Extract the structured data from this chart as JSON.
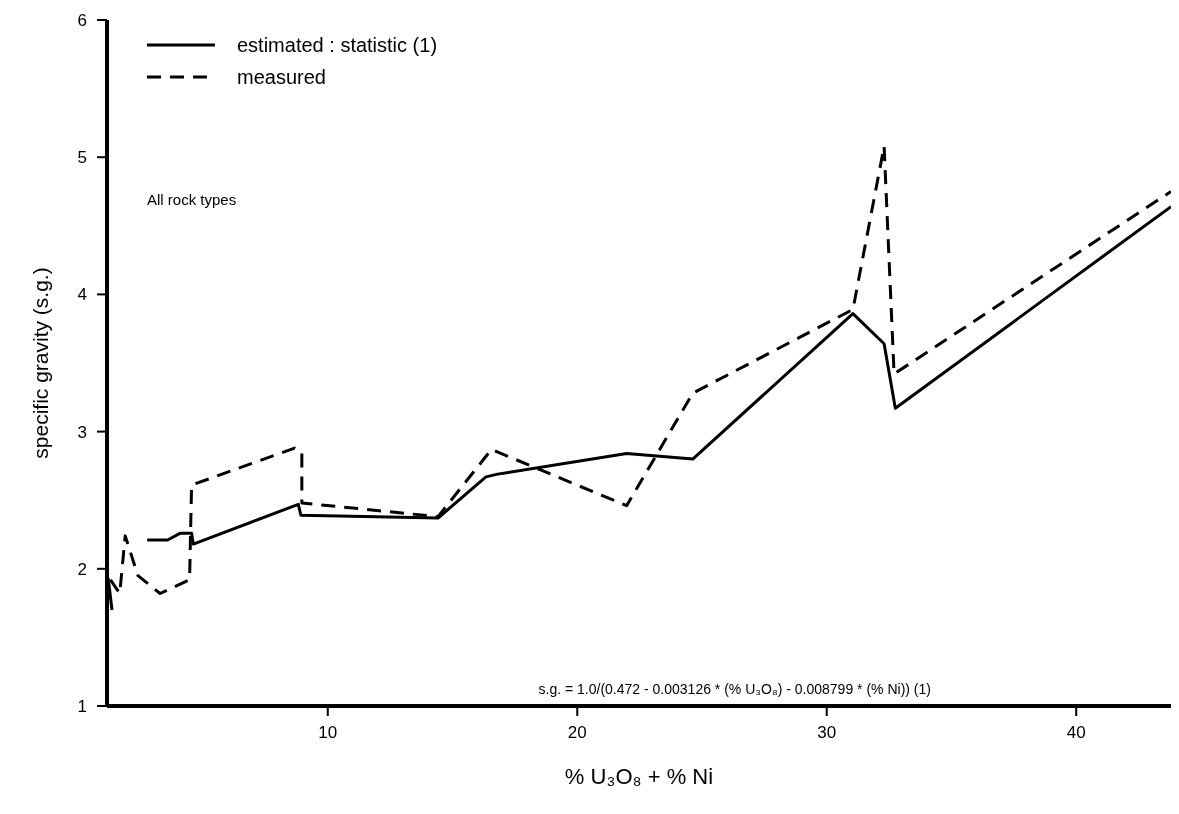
{
  "chart_data": {
    "type": "line",
    "xlabel": "% U₃O₈ + % Ni",
    "ylabel": "specific gravity (s.g.)",
    "xlim": [
      1.15,
      43.8
    ],
    "ylim": [
      1,
      6
    ],
    "xticks": [
      10,
      20,
      30,
      40
    ],
    "yticks": [
      1,
      2,
      3,
      4,
      5,
      6
    ],
    "grid": false,
    "legend": "top left",
    "marker": "none",
    "annotations": [
      "All rock types",
      "s.g. = 1.0/(0.472 - 0.003126 * (% U₃O₈) - 0.008799 * (% Ni))   (1)"
    ],
    "series": [
      {
        "name": "estimated : statistic (1)",
        "color": "#000000",
        "line_style": "solid",
        "x": [
          1.2,
          1.35,
          2.0,
          2.76,
          3.58,
          4.09,
          4.54,
          4.61,
          8.82,
          8.92,
          14.42,
          16.34,
          16.81,
          21.98,
          24.63,
          31.05,
          32.3,
          32.75,
          43.8
        ],
        "values": [
          1.93,
          1.7,
          null,
          2.21,
          2.21,
          2.26,
          2.26,
          2.18,
          2.47,
          2.39,
          2.37,
          2.67,
          2.69,
          2.84,
          2.8,
          3.86,
          3.64,
          3.17,
          4.64
        ]
      },
      {
        "name": "measured",
        "color": "#000000",
        "line_style": "dashed",
        "x": [
          1.29,
          1.66,
          1.88,
          2.39,
          3.28,
          4.46,
          4.54,
          8.67,
          8.96,
          8.96,
          14.42,
          16.56,
          21.98,
          24.63,
          31.05,
          32.3,
          32.7,
          43.8
        ],
        "values": [
          1.92,
          1.82,
          2.24,
          1.95,
          1.82,
          1.92,
          2.61,
          2.88,
          2.85,
          2.48,
          2.38,
          2.87,
          2.46,
          3.28,
          3.89,
          5.08,
          3.42,
          4.75
        ]
      }
    ]
  }
}
